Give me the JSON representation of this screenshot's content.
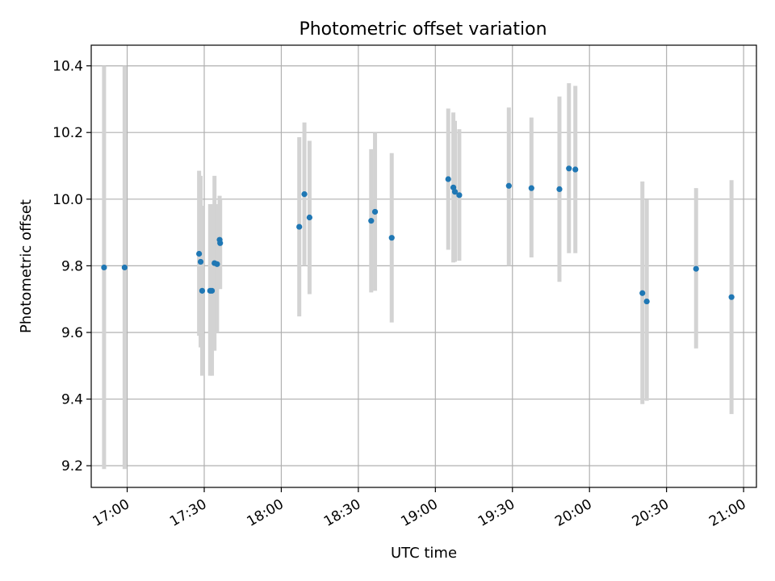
{
  "chart_data": {
    "type": "scatter",
    "title": "Photometric offset variation",
    "xlabel": "UTC time",
    "ylabel": "Photometric offset",
    "xlim": [
      "16:46",
      "21:05"
    ],
    "ylim": [
      9.135,
      10.462
    ],
    "x_ticks": [
      "17:00",
      "17:30",
      "18:00",
      "18:30",
      "19:00",
      "19:30",
      "20:00",
      "20:30",
      "21:00"
    ],
    "y_ticks": [
      9.2,
      9.4,
      9.6,
      9.8,
      10.0,
      10.2,
      10.4
    ],
    "grid": true,
    "point_color": "#1f77b4",
    "errorbar_color": "#d3d3d3",
    "points": [
      {
        "t": "16:51",
        "y": 9.795,
        "lo": 9.19,
        "hi": 10.4
      },
      {
        "t": "16:59",
        "y": 9.795,
        "lo": 9.19,
        "hi": 10.4
      },
      {
        "t": "17:28",
        "y": 9.836,
        "lo": 9.59,
        "hi": 10.085
      },
      {
        "t": "17:28.6",
        "y": 9.812,
        "lo": 9.555,
        "hi": 10.07
      },
      {
        "t": "17:29.2",
        "y": 9.725,
        "lo": 9.47,
        "hi": 9.98
      },
      {
        "t": "17:32.3",
        "y": 9.725,
        "lo": 9.47,
        "hi": 9.985
      },
      {
        "t": "17:33",
        "y": 9.725,
        "lo": 9.47,
        "hi": 9.985
      },
      {
        "t": "17:34",
        "y": 9.808,
        "lo": 9.545,
        "hi": 10.07
      },
      {
        "t": "17:35",
        "y": 9.805,
        "lo": 9.6,
        "hi": 9.985
      },
      {
        "t": "17:36",
        "y": 9.878,
        "lo": 9.74,
        "hi": 10.01
      },
      {
        "t": "17:36.2",
        "y": 9.868,
        "lo": 9.73,
        "hi": 10.0
      },
      {
        "t": "18:07",
        "y": 9.917,
        "lo": 9.648,
        "hi": 10.186
      },
      {
        "t": "18:09",
        "y": 10.015,
        "lo": 9.8,
        "hi": 10.23
      },
      {
        "t": "18:11",
        "y": 9.945,
        "lo": 9.715,
        "hi": 10.175
      },
      {
        "t": "18:35",
        "y": 9.935,
        "lo": 9.72,
        "hi": 10.15
      },
      {
        "t": "18:36.5",
        "y": 9.962,
        "lo": 9.725,
        "hi": 10.2
      },
      {
        "t": "18:43",
        "y": 9.884,
        "lo": 9.63,
        "hi": 10.138
      },
      {
        "t": "19:05",
        "y": 10.06,
        "lo": 9.848,
        "hi": 10.272
      },
      {
        "t": "19:07",
        "y": 10.035,
        "lo": 9.81,
        "hi": 10.26
      },
      {
        "t": "19:07.6",
        "y": 10.022,
        "lo": 9.812,
        "hi": 10.235
      },
      {
        "t": "19:09.3",
        "y": 10.012,
        "lo": 9.815,
        "hi": 10.21
      },
      {
        "t": "19:28.6",
        "y": 10.04,
        "lo": 9.8,
        "hi": 10.275
      },
      {
        "t": "19:37.4",
        "y": 10.033,
        "lo": 9.825,
        "hi": 10.245
      },
      {
        "t": "19:48.3",
        "y": 10.03,
        "lo": 9.752,
        "hi": 10.308
      },
      {
        "t": "19:52",
        "y": 10.092,
        "lo": 9.838,
        "hi": 10.348
      },
      {
        "t": "19:54.5",
        "y": 10.089,
        "lo": 9.838,
        "hi": 10.34
      },
      {
        "t": "20:20.6",
        "y": 9.718,
        "lo": 9.385,
        "hi": 10.053
      },
      {
        "t": "20:22.3",
        "y": 9.693,
        "lo": 9.395,
        "hi": 9.998
      },
      {
        "t": "20:41.5",
        "y": 9.791,
        "lo": 9.552,
        "hi": 10.033
      },
      {
        "t": "20:55.3",
        "y": 9.706,
        "lo": 9.355,
        "hi": 10.057
      }
    ]
  }
}
